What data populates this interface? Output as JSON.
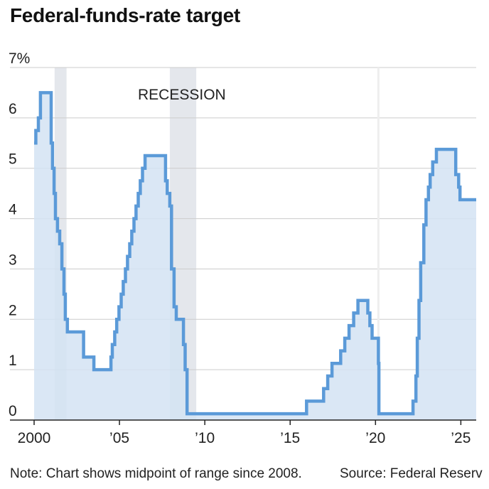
{
  "title": "Federal-funds-rate target",
  "note": "Note: Chart shows midpoint of range since 2008.",
  "source": "Source: Federal Reserv",
  "colors": {
    "line": "#5b9ad8",
    "fill": "#d4e3f3",
    "recession": "#e4e7ec",
    "grid": "#cccccc",
    "axis": "#222222"
  },
  "chart_data": {
    "type": "area",
    "title": "Federal-funds-rate target",
    "xlabel": "",
    "ylabel": "",
    "xlim": [
      2000.0,
      2025.9
    ],
    "ylim": [
      0,
      7
    ],
    "grid": true,
    "annotations": [
      "RECESSION"
    ],
    "recessions": [
      [
        2001.2,
        2001.9
      ],
      [
        2007.95,
        2009.5
      ]
    ],
    "yticks": [
      {
        "value": 0,
        "label": "0"
      },
      {
        "value": 1,
        "label": "1"
      },
      {
        "value": 2,
        "label": "2"
      },
      {
        "value": 3,
        "label": "3"
      },
      {
        "value": 4,
        "label": "4"
      },
      {
        "value": 5,
        "label": "5"
      },
      {
        "value": 6,
        "label": "6"
      },
      {
        "value": 7,
        "label": "7%"
      }
    ],
    "xticks": [
      {
        "value": 2000,
        "label": "2000"
      },
      {
        "value": 2005,
        "label": "’05"
      },
      {
        "value": 2010,
        "label": "’10"
      },
      {
        "value": 2015,
        "label": "’15"
      },
      {
        "value": 2020,
        "label": "’20"
      },
      {
        "value": 2025,
        "label": "’25"
      }
    ],
    "series": [
      {
        "x": [
          2000.0,
          2000.1,
          2000.25,
          2000.37,
          2001.0,
          2001.08,
          2001.17,
          2001.25,
          2001.37,
          2001.5,
          2001.63,
          2001.75,
          2001.83,
          2001.95,
          2002.9,
          2003.5,
          2004.5,
          2004.58,
          2004.72,
          2004.84,
          2004.97,
          2005.1,
          2005.22,
          2005.35,
          2005.47,
          2005.6,
          2005.72,
          2005.85,
          2005.97,
          2006.1,
          2006.22,
          2006.35,
          2006.5,
          2007.7,
          2007.8,
          2007.95,
          2008.05,
          2008.2,
          2008.33,
          2008.45,
          2008.75,
          2008.85,
          2008.96,
          2015.96,
          2016.96,
          2017.2,
          2017.45,
          2017.96,
          2018.2,
          2018.45,
          2018.72,
          2018.97,
          2019.55,
          2019.67,
          2019.8,
          2020.17,
          2020.2,
          2022.2,
          2022.37,
          2022.45,
          2022.55,
          2022.65,
          2022.83,
          2022.96,
          2023.1,
          2023.2,
          2023.35,
          2023.57,
          2024.7,
          2024.87,
          2024.95,
          2025.9
        ],
        "values": [
          5.5,
          5.75,
          6.0,
          6.5,
          5.5,
          5.0,
          4.5,
          4.0,
          3.75,
          3.5,
          3.0,
          2.5,
          2.0,
          1.75,
          1.25,
          1.0,
          1.25,
          1.5,
          1.75,
          2.0,
          2.25,
          2.5,
          2.75,
          3.0,
          3.25,
          3.5,
          3.75,
          4.0,
          4.25,
          4.5,
          4.75,
          5.0,
          5.25,
          4.75,
          4.5,
          4.25,
          3.0,
          2.25,
          2.0,
          2.0,
          1.5,
          1.0,
          0.125,
          0.375,
          0.625,
          0.875,
          1.125,
          1.375,
          1.625,
          1.875,
          2.125,
          2.375,
          2.125,
          1.875,
          1.625,
          1.125,
          0.125,
          0.375,
          0.875,
          1.625,
          2.375,
          3.125,
          3.875,
          4.375,
          4.625,
          4.875,
          5.125,
          5.375,
          4.875,
          4.625,
          4.375,
          4.375
        ]
      }
    ]
  }
}
